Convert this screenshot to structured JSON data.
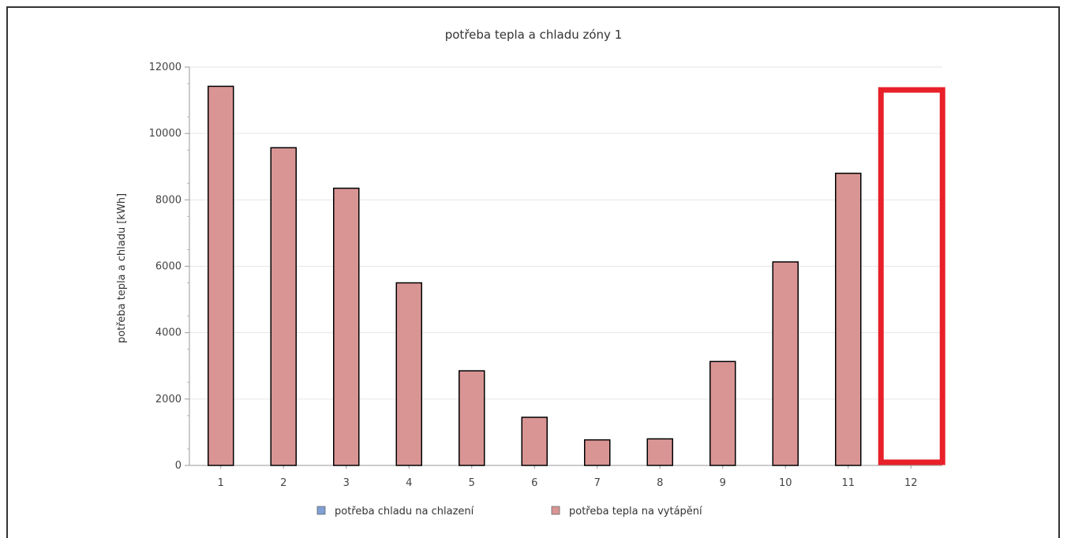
{
  "chart_data": {
    "type": "bar",
    "title": "potřeba tepla a chladu zóny 1",
    "xlabel": "",
    "ylabel": "potřeba tepla a chladu [kWh]",
    "ylim": [
      0,
      12000
    ],
    "yticks": [
      "0",
      "2000",
      "4000",
      "6000",
      "8000",
      "10000",
      "12000"
    ],
    "categories": [
      "1",
      "2",
      "3",
      "4",
      "5",
      "6",
      "7",
      "8",
      "9",
      "10",
      "11",
      "12"
    ],
    "series": [
      {
        "name": "potřeba chladu na chlazení",
        "color": "#7f9fd6",
        "values": [
          0,
          0,
          0,
          0,
          0,
          0,
          0,
          0,
          0,
          0,
          0,
          0
        ]
      },
      {
        "name": "potřeba tepla na vytápění",
        "color": "#d99594",
        "values": [
          11420,
          9570,
          8350,
          5500,
          2850,
          1450,
          770,
          800,
          3130,
          6130,
          8800,
          0
        ]
      }
    ],
    "grid": true,
    "legend_position": "bottom",
    "highlight": {
      "category": "12",
      "color": "#e8202a",
      "style": "rectangle"
    }
  }
}
